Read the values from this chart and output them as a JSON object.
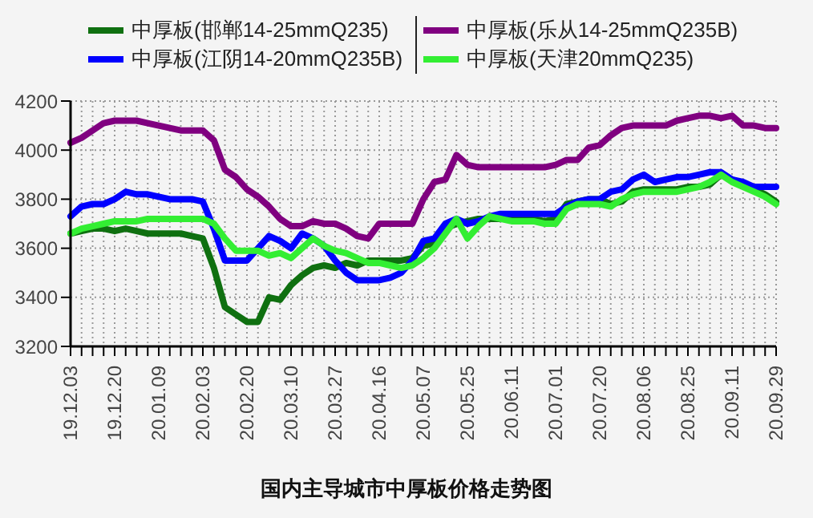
{
  "chart_data": {
    "type": "line",
    "title": "国内主导城市中厚板价格走势图",
    "categories": [
      "19.12.03",
      null,
      null,
      null,
      "19.12.20",
      null,
      null,
      null,
      "20.01.09",
      null,
      null,
      null,
      "20.02.03",
      null,
      null,
      null,
      "20.02.20",
      null,
      null,
      null,
      "20.03.10",
      null,
      null,
      null,
      "20.03.27",
      null,
      null,
      null,
      "20.04.16",
      null,
      null,
      null,
      "20.05.07",
      null,
      null,
      null,
      "20.05.25",
      null,
      null,
      null,
      "20.06.11",
      null,
      null,
      null,
      "20.07.01",
      null,
      null,
      null,
      "20.07.20",
      null,
      null,
      null,
      "20.08.06",
      null,
      null,
      null,
      "20.08.25",
      null,
      null,
      null,
      "20.09.11",
      null,
      null,
      null,
      "20.09.29"
    ],
    "series": [
      {
        "name": "中厚板(邯郸14-25mmQ235)",
        "color": "#0f7010",
        "values": [
          3660,
          3670,
          3680,
          3680,
          3670,
          3680,
          3670,
          3660,
          3660,
          3660,
          3660,
          3650,
          3640,
          3520,
          3360,
          3330,
          3300,
          3300,
          3400,
          3390,
          3450,
          3490,
          3520,
          3530,
          3520,
          3540,
          3530,
          3550,
          3550,
          3550,
          3550,
          3560,
          3610,
          3620,
          3680,
          3700,
          3710,
          3720,
          3720,
          3720,
          3720,
          3720,
          3720,
          3710,
          3720,
          3780,
          3790,
          3800,
          3800,
          3780,
          3790,
          3830,
          3840,
          3840,
          3840,
          3840,
          3850,
          3850,
          3860,
          3900,
          3880,
          3860,
          3840,
          3820,
          3790
        ]
      },
      {
        "name": "中厚板(乐从14-25mmQ235B)",
        "color": "#800080",
        "values": [
          4030,
          4050,
          4080,
          4110,
          4120,
          4120,
          4120,
          4110,
          4100,
          4090,
          4080,
          4080,
          4080,
          4040,
          3920,
          3890,
          3840,
          3810,
          3770,
          3720,
          3690,
          3690,
          3710,
          3700,
          3700,
          3680,
          3650,
          3640,
          3700,
          3700,
          3700,
          3700,
          3800,
          3870,
          3880,
          3980,
          3940,
          3930,
          3930,
          3930,
          3930,
          3930,
          3930,
          3930,
          3940,
          3960,
          3960,
          4010,
          4020,
          4060,
          4090,
          4100,
          4100,
          4100,
          4100,
          4120,
          4130,
          4140,
          4140,
          4130,
          4140,
          4100,
          4100,
          4090,
          4090
        ]
      },
      {
        "name": "中厚板(江阴14-20mmQ235B)",
        "color": "#0000ff",
        "values": [
          3730,
          3770,
          3780,
          3780,
          3800,
          3830,
          3820,
          3820,
          3810,
          3800,
          3800,
          3800,
          3790,
          3680,
          3550,
          3550,
          3550,
          3600,
          3650,
          3630,
          3600,
          3660,
          3640,
          3610,
          3550,
          3500,
          3470,
          3470,
          3470,
          3480,
          3500,
          3550,
          3630,
          3640,
          3700,
          3720,
          3700,
          3710,
          3730,
          3740,
          3740,
          3740,
          3740,
          3740,
          3740,
          3770,
          3790,
          3800,
          3800,
          3830,
          3840,
          3880,
          3900,
          3870,
          3880,
          3890,
          3890,
          3900,
          3910,
          3910,
          3880,
          3870,
          3850,
          3850,
          3850
        ]
      },
      {
        "name": "中厚板(天津20mmQ235)",
        "color": "#33ee33",
        "values": [
          3660,
          3680,
          3690,
          3700,
          3710,
          3710,
          3710,
          3720,
          3720,
          3720,
          3720,
          3720,
          3720,
          3700,
          3640,
          3590,
          3590,
          3590,
          3570,
          3580,
          3560,
          3600,
          3640,
          3610,
          3590,
          3580,
          3560,
          3540,
          3540,
          3530,
          3520,
          3530,
          3560,
          3600,
          3660,
          3720,
          3640,
          3690,
          3730,
          3720,
          3710,
          3710,
          3710,
          3700,
          3700,
          3760,
          3780,
          3780,
          3780,
          3770,
          3800,
          3820,
          3830,
          3830,
          3830,
          3830,
          3840,
          3850,
          3870,
          3900,
          3870,
          3850,
          3830,
          3810,
          3780
        ]
      }
    ],
    "ylim": [
      3200,
      4200
    ],
    "yticks": [
      3200,
      3400,
      3600,
      3800,
      4000,
      4200
    ],
    "grid": true,
    "legend": "top",
    "line_style": "solid",
    "marker": "none"
  }
}
